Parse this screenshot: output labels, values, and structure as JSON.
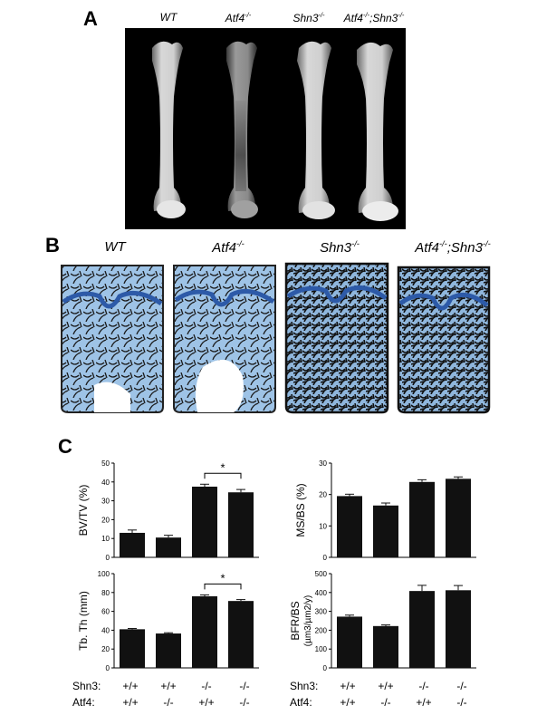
{
  "panels": {
    "a_label": "A",
    "b_label": "B",
    "c_label": "C"
  },
  "genotypes": [
    {
      "base": "WT",
      "sup": ""
    },
    {
      "base": "Atf4",
      "sup": "-/-"
    },
    {
      "base": "Shn3",
      "sup": "-/-"
    },
    {
      "base": "Atf4",
      "sup": "-/-",
      "base2": ";Shn3",
      "sup2": "-/-"
    }
  ],
  "chart_data": [
    {
      "type": "bar",
      "ylabel": "BV/TV (%)",
      "ylim": [
        0,
        50
      ],
      "yticks": [
        "0",
        "10",
        "20",
        "30",
        "40",
        "50"
      ],
      "categories": [
        "+/+ / +/+",
        "+/+ / -/-",
        "-/- / +/+",
        "-/- / -/-"
      ],
      "values": [
        13,
        10.5,
        37.5,
        34.5
      ],
      "errors": [
        1.5,
        1.2,
        1.3,
        1.5
      ],
      "significance": {
        "between": [
          2,
          3
        ],
        "label": "*"
      }
    },
    {
      "type": "bar",
      "ylabel": "MS/BS (%)",
      "ylim": [
        0,
        30
      ],
      "yticks": [
        "0",
        "10",
        "20",
        "30"
      ],
      "categories": [
        "+/+ / +/+",
        "+/+ / -/-",
        "-/- / +/+",
        "-/- / -/-"
      ],
      "values": [
        19.5,
        16.5,
        24,
        25
      ],
      "errors": [
        0.6,
        0.8,
        0.7,
        0.6
      ]
    },
    {
      "type": "bar",
      "ylabel": "Tb. Th (mm)",
      "ylim": [
        0,
        100
      ],
      "yticks": [
        "0",
        "20",
        "40",
        "60",
        "80",
        "100"
      ],
      "categories": [
        "+/+ / +/+",
        "+/+ / -/-",
        "-/- / +/+",
        "-/- / -/-"
      ],
      "values": [
        41,
        36.5,
        76,
        71
      ],
      "errors": [
        0.8,
        0.8,
        1.5,
        1.5
      ],
      "significance": {
        "between": [
          2,
          3
        ],
        "label": "*"
      }
    },
    {
      "type": "bar",
      "ylabel": "BFR/BS",
      "ylabel2": "(µm3/µm2/y)",
      "ylim": [
        0,
        500
      ],
      "yticks": [
        "0",
        "100",
        "200",
        "300",
        "400",
        "500"
      ],
      "categories": [
        "+/+ / +/+",
        "+/+ / -/-",
        "-/- / +/+",
        "-/- / -/-"
      ],
      "values": [
        272,
        222,
        408,
        412
      ],
      "errors": [
        8,
        6,
        30,
        25
      ]
    }
  ],
  "genotype_table": {
    "shn3_label": "Shn3:",
    "atf4_label": "Atf4:",
    "shn3": [
      "+/+",
      "+/+",
      "-/-",
      "-/-"
    ],
    "atf4": [
      "+/+",
      "-/-",
      "+/+",
      "-/-"
    ]
  }
}
